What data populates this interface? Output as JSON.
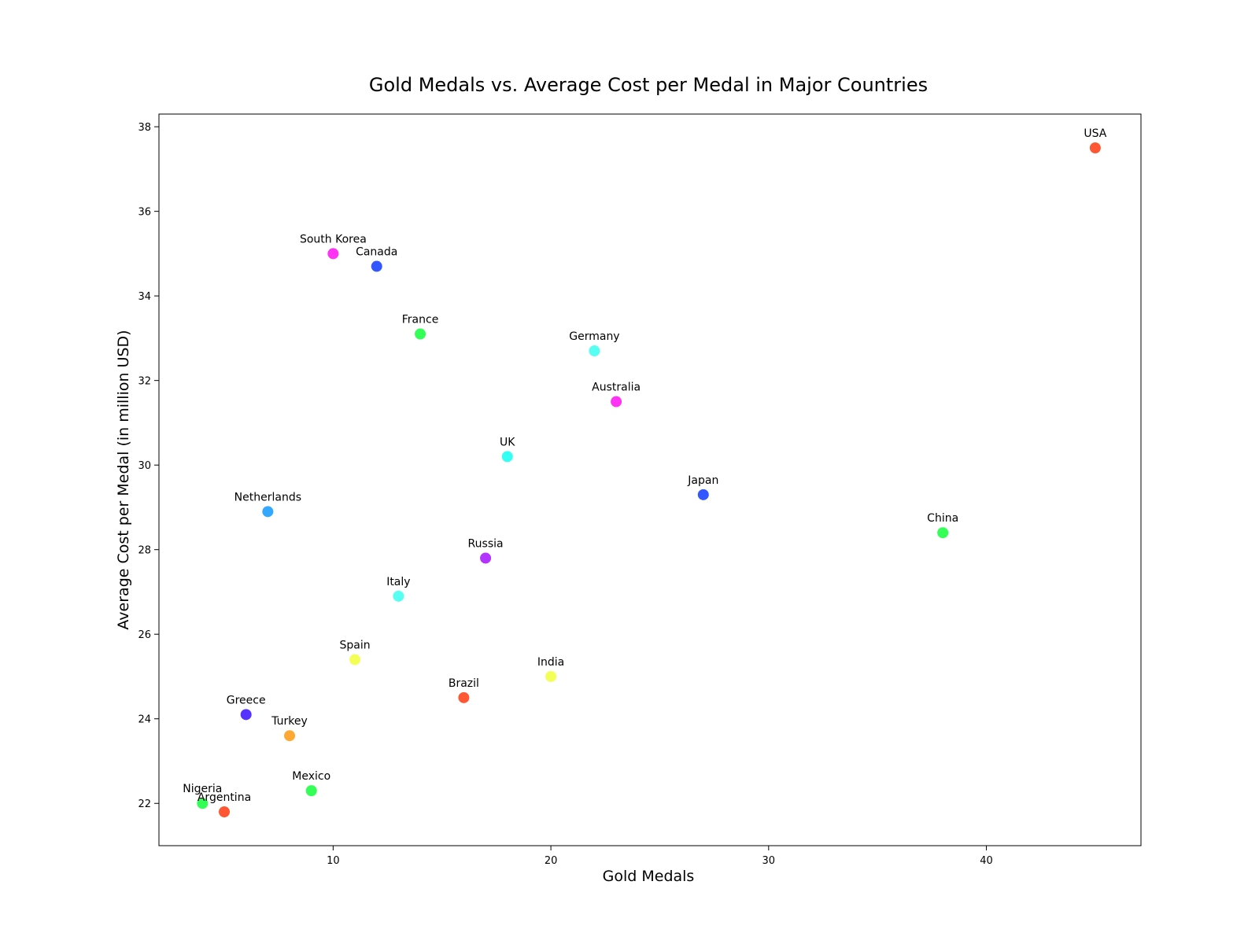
{
  "chart_data": {
    "type": "scatter",
    "title": "Gold Medals vs. Average Cost per Medal in Major Countries",
    "xlabel": "Gold Medals",
    "ylabel": "Average Cost per Medal (in million USD)",
    "xlim": [
      2,
      47.1
    ],
    "ylim": [
      21.0,
      38.3
    ],
    "xticks": [
      10,
      20,
      30,
      40
    ],
    "yticks": [
      22,
      24,
      26,
      28,
      30,
      32,
      34,
      36,
      38
    ],
    "grid": false,
    "points": [
      {
        "label": "USA",
        "x": 45,
        "y": 37.5,
        "color": "#ff5733"
      },
      {
        "label": "China",
        "x": 38,
        "y": 28.4,
        "color": "#33ff57"
      },
      {
        "label": "Japan",
        "x": 27,
        "y": 29.3,
        "color": "#3357ff"
      },
      {
        "label": "Germany",
        "x": 22,
        "y": 32.7,
        "color": "#57fff3"
      },
      {
        "label": "UK",
        "x": 18,
        "y": 30.2,
        "color": "#33fff3"
      },
      {
        "label": "France",
        "x": 14,
        "y": 33.1,
        "color": "#33ff57"
      },
      {
        "label": "Australia",
        "x": 23,
        "y": 31.5,
        "color": "#ff33f3"
      },
      {
        "label": "Italy",
        "x": 13,
        "y": 26.9,
        "color": "#57fff3"
      },
      {
        "label": "Canada",
        "x": 12,
        "y": 34.7,
        "color": "#3357ff"
      },
      {
        "label": "South Korea",
        "x": 10,
        "y": 35.0,
        "color": "#ff33f3"
      },
      {
        "label": "Russia",
        "x": 17,
        "y": 27.8,
        "color": "#b333ff"
      },
      {
        "label": "Brazil",
        "x": 16,
        "y": 24.5,
        "color": "#ff5733"
      },
      {
        "label": "Netherlands",
        "x": 7,
        "y": 28.9,
        "color": "#33a8ff"
      },
      {
        "label": "Spain",
        "x": 11,
        "y": 25.4,
        "color": "#f3ff57"
      },
      {
        "label": "India",
        "x": 20,
        "y": 25.0,
        "color": "#f3ff57"
      },
      {
        "label": "Greece",
        "x": 6,
        "y": 24.1,
        "color": "#5733ff"
      },
      {
        "label": "Turkey",
        "x": 8,
        "y": 23.6,
        "color": "#ffa833"
      },
      {
        "label": "Mexico",
        "x": 9,
        "y": 22.3,
        "color": "#33ff57"
      },
      {
        "label": "Nigeria",
        "x": 4,
        "y": 22.0,
        "color": "#33ff57"
      },
      {
        "label": "Argentina",
        "x": 5,
        "y": 21.8,
        "color": "#ff5733"
      }
    ]
  }
}
